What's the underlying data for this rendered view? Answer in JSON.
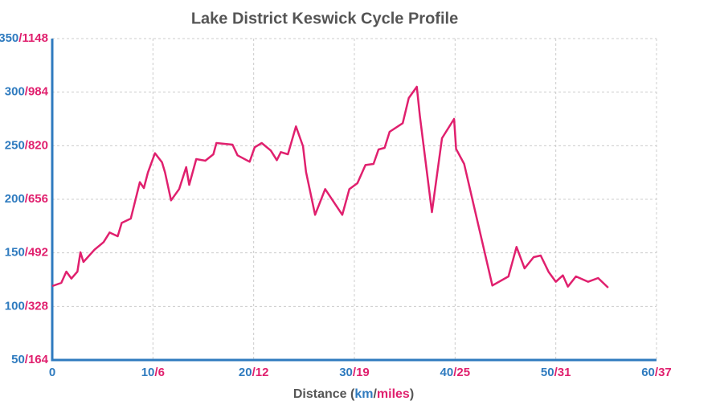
{
  "chart_data": {
    "type": "line",
    "title": "Lake District Keswick Cycle Profile",
    "xlabel_parts": [
      "Distance (",
      "km",
      "/",
      "miles",
      ")"
    ],
    "x": [
      0,
      0.9,
      1.4,
      1.9,
      2.5,
      2.8,
      3.1,
      4.2,
      5.1,
      5.7,
      6.5,
      6.9,
      7.8,
      8.7,
      9.1,
      9.5,
      10.2,
      10.9,
      11.2,
      11.8,
      12.6,
      13.3,
      13.6,
      14.3,
      15.2,
      16.0,
      16.3,
      17.9,
      18.4,
      19.6,
      20.1,
      20.8,
      21.7,
      22.3,
      22.7,
      23.4,
      24.2,
      24.9,
      25.2,
      26.1,
      27.1,
      28.8,
      29.5,
      30.3,
      31.1,
      31.9,
      32.4,
      33.0,
      33.5,
      34.8,
      35.4,
      36.2,
      36.5,
      37.7,
      38.7,
      39.9,
      40.1,
      40.9,
      43.7,
      45.3,
      46.1,
      46.9,
      47.8,
      48.5,
      49.3,
      50.0,
      50.7,
      51.2,
      52.0,
      53.2,
      54.2,
      55.2
    ],
    "series": [
      {
        "color": "#e0206e",
        "values": [
          119,
          122,
          132.5,
          126,
          132.5,
          150.5,
          141.5,
          153,
          160,
          169,
          165.5,
          178,
          182,
          216,
          210.5,
          225,
          243,
          234.5,
          225,
          199,
          209.5,
          230,
          213.5,
          237.5,
          236,
          242,
          252.5,
          251,
          241,
          235,
          248.5,
          252.5,
          245.5,
          236.5,
          244,
          242,
          268,
          249.5,
          225.5,
          185.5,
          209.5,
          185.5,
          209.5,
          215,
          232,
          233,
          246.5,
          248,
          263,
          271,
          294.5,
          305,
          278,
          188,
          257,
          275,
          247,
          233,
          119.5,
          128,
          155.5,
          135.5,
          146,
          147.5,
          132,
          123,
          129,
          118.5,
          128,
          123,
          126.5,
          117.5
        ]
      }
    ],
    "xlim": [
      0,
      60
    ],
    "xticks": [
      0,
      10,
      20,
      30,
      40,
      50,
      60
    ],
    "x2lim": [
      0,
      37.28
    ],
    "x2ticks": [
      {
        "value": 6.21,
        "label": "/6"
      },
      {
        "value": 12.43,
        "label": "/12"
      },
      {
        "value": 18.64,
        "label": "/19"
      },
      {
        "value": 24.85,
        "label": "/25"
      },
      {
        "value": 31.07,
        "label": "/31"
      },
      {
        "value": 37.28,
        "label": "/37"
      }
    ],
    "ylim": [
      50,
      350
    ],
    "yticks": [
      50,
      100,
      150,
      200,
      250,
      300,
      350
    ],
    "y2lim": [
      164.04,
      1148.29
    ],
    "y2ticks": [
      {
        "value": 164.04,
        "label": "/164"
      },
      {
        "value": 328.08,
        "label": "/328"
      },
      {
        "value": 492.13,
        "label": "/492"
      },
      {
        "value": 656.17,
        "label": "/656"
      },
      {
        "value": 820.21,
        "label": "/820"
      },
      {
        "value": 984.25,
        "label": "/984"
      },
      {
        "value": 1148.29,
        "label": "/1148"
      }
    ],
    "grid": true,
    "axis_color": "#2f7bbf",
    "unit2_color": "#e0206e"
  }
}
